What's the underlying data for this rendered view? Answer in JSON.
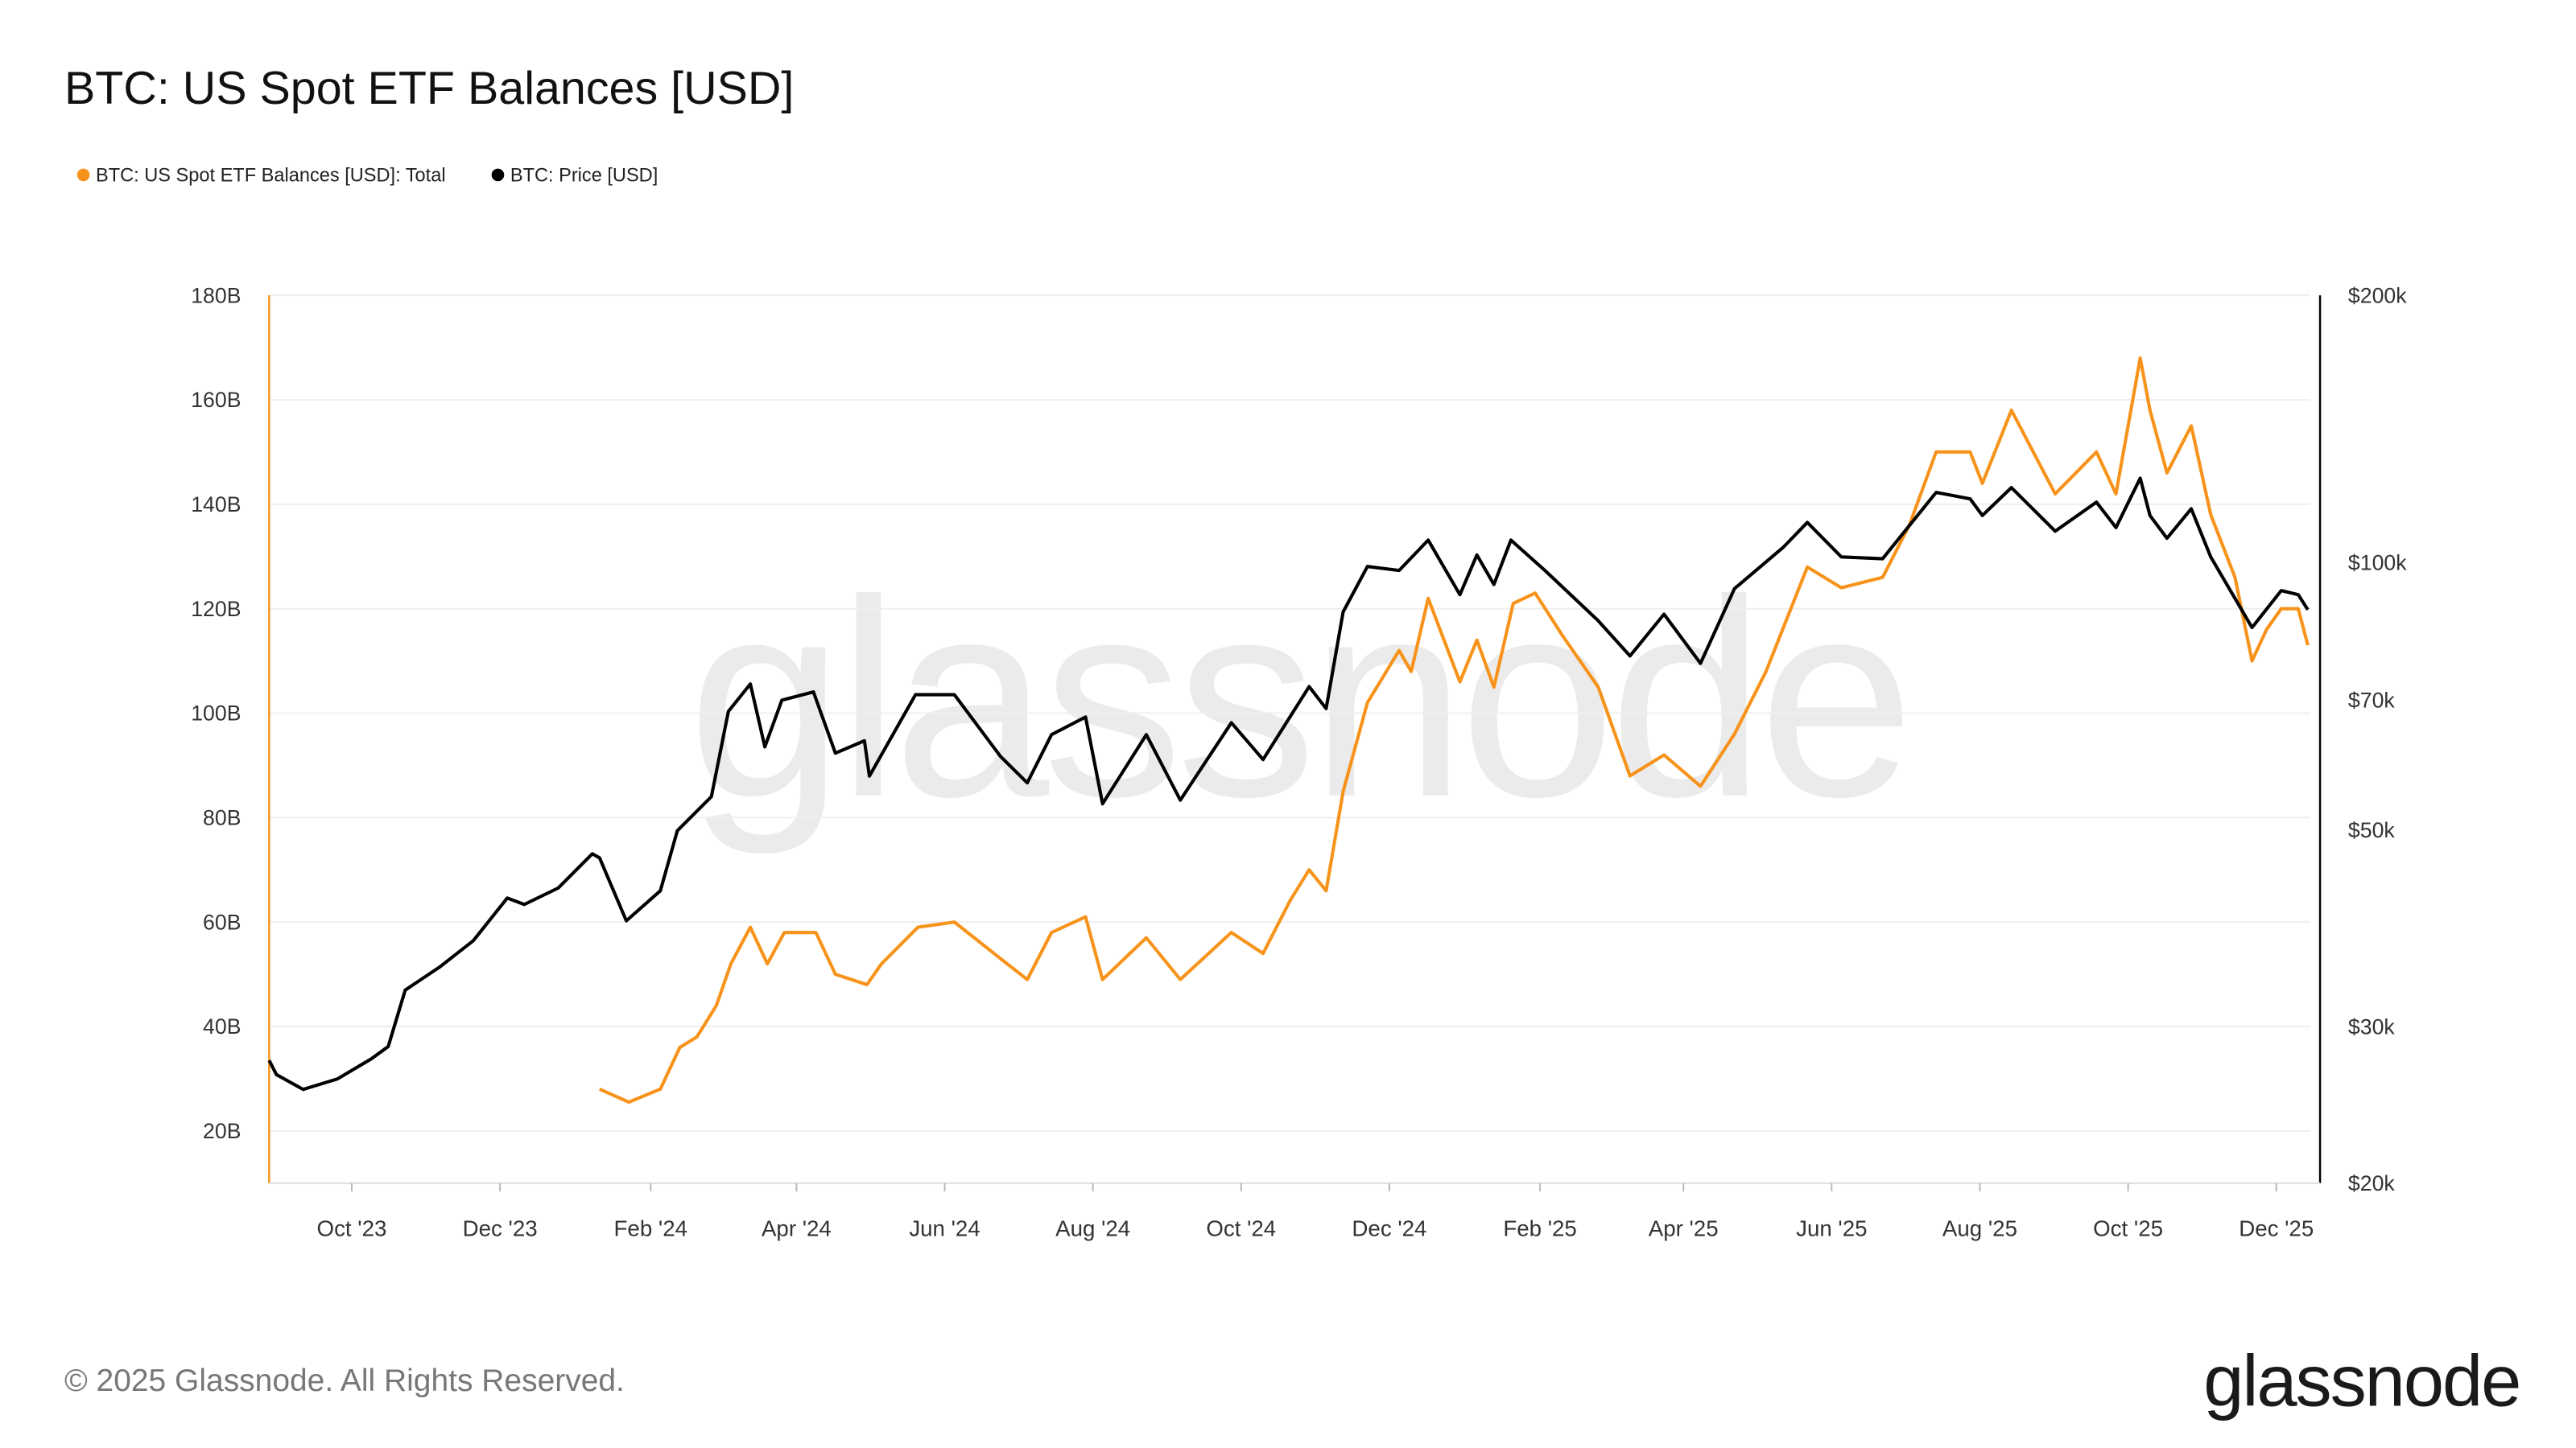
{
  "chart_data": {
    "type": "line",
    "title": "BTC: US Spot ETF Balances [USD]",
    "legend_placement": "top-left",
    "grid": true,
    "x_ticks": [
      "Oct '23",
      "Dec '23",
      "Feb '24",
      "Apr '24",
      "Jun '24",
      "Aug '24",
      "Oct '24",
      "Dec '24",
      "Feb '25",
      "Apr '25",
      "Jun '25",
      "Aug '25",
      "Oct '25",
      "Dec '25"
    ],
    "x_tick_dates": [
      "2023-10-01",
      "2023-12-01",
      "2024-02-01",
      "2024-04-01",
      "2024-06-01",
      "2024-08-01",
      "2024-10-01",
      "2024-12-01",
      "2025-02-01",
      "2025-04-01",
      "2025-06-01",
      "2025-08-01",
      "2025-10-01",
      "2025-12-01"
    ],
    "xlim": [
      "2023-08-28",
      "2025-12-19"
    ],
    "y_left": {
      "ylim": [
        10,
        180
      ],
      "ticks": [
        20,
        40,
        60,
        80,
        100,
        120,
        140,
        160,
        180
      ],
      "tick_labels": [
        "20B",
        "40B",
        "60B",
        "80B",
        "100B",
        "120B",
        "140B",
        "160B",
        "180B"
      ],
      "color": "#f7931a"
    },
    "y_right": {
      "scale": "log",
      "ylim": [
        20000,
        200000
      ],
      "ticks": [
        20000,
        30000,
        50000,
        70000,
        100000,
        200000
      ],
      "tick_labels": [
        "$20k",
        "$30k",
        "$50k",
        "$70k",
        "$100k",
        "$200k"
      ],
      "color": "#000000"
    },
    "series": [
      {
        "name": "BTC: US Spot ETF Balances [USD]: Total",
        "axis": "left",
        "unit": "B USD",
        "color": "#f7931a",
        "points": [
          [
            "2024-01-11",
            28
          ],
          [
            "2024-01-23",
            25.5
          ],
          [
            "2024-02-05",
            28
          ],
          [
            "2024-02-13",
            36
          ],
          [
            "2024-02-20",
            38
          ],
          [
            "2024-02-28",
            44
          ],
          [
            "2024-03-05",
            52
          ],
          [
            "2024-03-13",
            59
          ],
          [
            "2024-03-20",
            52
          ],
          [
            "2024-03-27",
            58
          ],
          [
            "2024-04-09",
            58
          ],
          [
            "2024-04-17",
            50
          ],
          [
            "2024-04-30",
            48
          ],
          [
            "2024-05-06",
            52
          ],
          [
            "2024-05-21",
            59
          ],
          [
            "2024-06-05",
            60
          ],
          [
            "2024-06-24",
            53
          ],
          [
            "2024-07-05",
            49
          ],
          [
            "2024-07-15",
            58
          ],
          [
            "2024-07-29",
            61
          ],
          [
            "2024-08-05",
            49
          ],
          [
            "2024-08-23",
            57
          ],
          [
            "2024-09-06",
            49
          ],
          [
            "2024-09-27",
            58
          ],
          [
            "2024-10-10",
            54
          ],
          [
            "2024-10-21",
            64
          ],
          [
            "2024-10-29",
            70
          ],
          [
            "2024-11-05",
            66
          ],
          [
            "2024-11-12",
            85
          ],
          [
            "2024-11-22",
            102
          ],
          [
            "2024-12-05",
            112
          ],
          [
            "2024-12-10",
            108
          ],
          [
            "2024-12-17",
            122
          ],
          [
            "2024-12-30",
            106
          ],
          [
            "2025-01-06",
            114
          ],
          [
            "2025-01-13",
            105
          ],
          [
            "2025-01-21",
            121
          ],
          [
            "2025-01-30",
            123
          ],
          [
            "2025-02-10",
            115
          ],
          [
            "2025-02-25",
            105
          ],
          [
            "2025-03-10",
            88
          ],
          [
            "2025-03-24",
            92
          ],
          [
            "2025-04-08",
            86
          ],
          [
            "2025-04-22",
            96
          ],
          [
            "2025-05-05",
            108
          ],
          [
            "2025-05-22",
            128
          ],
          [
            "2025-06-05",
            124
          ],
          [
            "2025-06-22",
            126
          ],
          [
            "2025-07-03",
            136
          ],
          [
            "2025-07-14",
            150
          ],
          [
            "2025-07-28",
            150
          ],
          [
            "2025-08-02",
            144
          ],
          [
            "2025-08-14",
            158
          ],
          [
            "2025-09-01",
            142
          ],
          [
            "2025-09-18",
            150
          ],
          [
            "2025-09-26",
            142
          ],
          [
            "2025-10-06",
            168
          ],
          [
            "2025-10-10",
            158
          ],
          [
            "2025-10-17",
            146
          ],
          [
            "2025-10-27",
            155
          ],
          [
            "2025-11-04",
            138
          ],
          [
            "2025-11-14",
            126
          ],
          [
            "2025-11-21",
            110
          ],
          [
            "2025-11-27",
            116
          ],
          [
            "2025-12-03",
            120
          ],
          [
            "2025-12-10",
            120
          ],
          [
            "2025-12-14",
            113
          ]
        ]
      },
      {
        "name": "BTC: Price [USD]",
        "axis": "right",
        "unit": "USD",
        "color": "#000000",
        "points": [
          [
            "2023-08-28",
            27500
          ],
          [
            "2023-08-31",
            26500
          ],
          [
            "2023-09-11",
            25500
          ],
          [
            "2023-09-25",
            26200
          ],
          [
            "2023-10-09",
            27600
          ],
          [
            "2023-10-16",
            28500
          ],
          [
            "2023-10-23",
            33000
          ],
          [
            "2023-11-06",
            35000
          ],
          [
            "2023-11-20",
            37500
          ],
          [
            "2023-12-04",
            41900
          ],
          [
            "2023-12-11",
            41200
          ],
          [
            "2023-12-25",
            43000
          ],
          [
            "2024-01-08",
            47000
          ],
          [
            "2024-01-11",
            46500
          ],
          [
            "2024-01-22",
            39500
          ],
          [
            "2024-02-05",
            42700
          ],
          [
            "2024-02-12",
            49900
          ],
          [
            "2024-02-26",
            54500
          ],
          [
            "2024-03-04",
            68000
          ],
          [
            "2024-03-13",
            73000
          ],
          [
            "2024-03-19",
            62000
          ],
          [
            "2024-03-26",
            70000
          ],
          [
            "2024-04-08",
            71500
          ],
          [
            "2024-04-17",
            61000
          ],
          [
            "2024-04-29",
            63000
          ],
          [
            "2024-05-01",
            57500
          ],
          [
            "2024-05-20",
            71000
          ],
          [
            "2024-06-05",
            71000
          ],
          [
            "2024-06-24",
            60500
          ],
          [
            "2024-07-05",
            56500
          ],
          [
            "2024-07-15",
            64000
          ],
          [
            "2024-07-29",
            67000
          ],
          [
            "2024-08-05",
            53500
          ],
          [
            "2024-08-23",
            64000
          ],
          [
            "2024-09-06",
            54000
          ],
          [
            "2024-09-27",
            66000
          ],
          [
            "2024-10-10",
            60000
          ],
          [
            "2024-10-29",
            72500
          ],
          [
            "2024-11-05",
            68500
          ],
          [
            "2024-11-12",
            88000
          ],
          [
            "2024-11-22",
            99000
          ],
          [
            "2024-12-05",
            98000
          ],
          [
            "2024-12-17",
            106000
          ],
          [
            "2024-12-30",
            92000
          ],
          [
            "2025-01-06",
            102000
          ],
          [
            "2025-01-13",
            94500
          ],
          [
            "2025-01-20",
            106000
          ],
          [
            "2025-02-03",
            98000
          ],
          [
            "2025-02-25",
            86000
          ],
          [
            "2025-03-10",
            78500
          ],
          [
            "2025-03-24",
            87500
          ],
          [
            "2025-04-08",
            77000
          ],
          [
            "2025-04-22",
            93500
          ],
          [
            "2025-05-12",
            104000
          ],
          [
            "2025-05-22",
            111000
          ],
          [
            "2025-06-05",
            101500
          ],
          [
            "2025-06-22",
            101000
          ],
          [
            "2025-07-14",
            120000
          ],
          [
            "2025-07-28",
            118000
          ],
          [
            "2025-08-02",
            113000
          ],
          [
            "2025-08-14",
            121500
          ],
          [
            "2025-09-01",
            108500
          ],
          [
            "2025-09-18",
            117000
          ],
          [
            "2025-09-26",
            109500
          ],
          [
            "2025-10-06",
            124500
          ],
          [
            "2025-10-10",
            113000
          ],
          [
            "2025-10-17",
            106500
          ],
          [
            "2025-10-27",
            115000
          ],
          [
            "2025-11-04",
            101500
          ],
          [
            "2025-11-21",
            84500
          ],
          [
            "2025-12-03",
            93000
          ],
          [
            "2025-12-10",
            92000
          ],
          [
            "2025-12-14",
            88500
          ]
        ]
      }
    ]
  },
  "watermark": "glassnode",
  "footer": {
    "copyright": "© 2025 Glassnode. All Rights Reserved.",
    "logo": "glassnode"
  }
}
